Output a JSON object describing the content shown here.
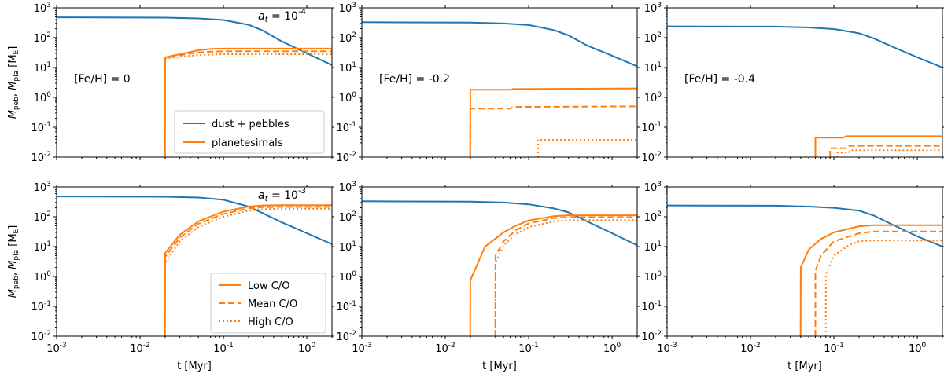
{
  "colors": {
    "dust": "#1f77b4",
    "planetesimals": "#ff7f0e"
  },
  "axis_labels": {
    "x": "t [Myr]",
    "y_main": "M",
    "y_sub_peb": "peb",
    "y_comma": ", ",
    "y_sub_pla": "pla",
    "y_unit_open": " [M",
    "y_unit_sub": "E",
    "y_unit_close": "]"
  },
  "legends": {
    "top": [
      {
        "label": "dust + pebbles",
        "series": "dust",
        "style": "solid"
      },
      {
        "label": "planetesimals",
        "series": "planetesimals",
        "style": "solid"
      }
    ],
    "bottom": [
      {
        "label": "Low C/O",
        "series": "planetesimals",
        "style": "solid"
      },
      {
        "label": "Mean C/O",
        "series": "planetesimals",
        "style": "dashed"
      },
      {
        "label": "High C/O",
        "series": "planetesimals",
        "style": "dotted"
      }
    ]
  },
  "chart_data": [
    {
      "type": "line",
      "row": 0,
      "col": 0,
      "xscale": "log",
      "yscale": "log",
      "xlim": [
        0.001,
        2
      ],
      "ylim": [
        0.01,
        1000
      ],
      "xlabel": "",
      "ylabel": "Mpeb, Mpla [ME]",
      "annotation": {
        "prefix": "a",
        "sub": "t",
        "mid": " = 10",
        "sup": "-4"
      },
      "panel_label": "[Fe/H] = 0",
      "legend": "top",
      "series": [
        {
          "name": "dust + pebbles (Low C/O)",
          "color": "dust",
          "style": "solid",
          "x": [
            0.001,
            0.02,
            0.05,
            0.1,
            0.2,
            0.3,
            0.5,
            1,
            2
          ],
          "y": [
            480,
            470,
            440,
            390,
            270,
            170,
            75,
            30,
            12
          ]
        },
        {
          "name": "planetesimals (Low C/O)",
          "color": "planetesimals",
          "style": "solid",
          "x": [
            0.0199,
            0.02,
            0.03,
            0.05,
            0.07,
            0.1,
            2
          ],
          "y": [
            0.01,
            22,
            28,
            38,
            42,
            43,
            43
          ]
        },
        {
          "name": "planetesimals (Mean C/O)",
          "color": "planetesimals",
          "style": "dashed",
          "x": [
            0.0199,
            0.02,
            0.03,
            0.05,
            0.07,
            0.1,
            2
          ],
          "y": [
            0.01,
            21,
            26,
            32,
            34,
            35,
            35
          ]
        },
        {
          "name": "planetesimals (High C/O)",
          "color": "planetesimals",
          "style": "dotted",
          "x": [
            0.0199,
            0.02,
            0.03,
            0.05,
            0.07,
            0.1,
            2
          ],
          "y": [
            0.01,
            20,
            23,
            26,
            27,
            28,
            28
          ]
        }
      ]
    },
    {
      "type": "line",
      "row": 0,
      "col": 1,
      "xscale": "log",
      "yscale": "log",
      "xlim": [
        0.001,
        2
      ],
      "ylim": [
        0.01,
        1000
      ],
      "xlabel": "",
      "ylabel": "",
      "panel_label": "[Fe/H] = -0.2",
      "series": [
        {
          "name": "dust + pebbles",
          "color": "dust",
          "style": "solid",
          "x": [
            0.001,
            0.02,
            0.05,
            0.1,
            0.2,
            0.3,
            0.5,
            1,
            2
          ],
          "y": [
            330,
            320,
            300,
            265,
            180,
            120,
            55,
            25,
            11
          ]
        },
        {
          "name": "planetesimals (Low C/O)",
          "color": "planetesimals",
          "style": "solid",
          "x": [
            0.0199,
            0.02,
            0.06,
            0.065,
            2
          ],
          "y": [
            0.01,
            1.8,
            1.8,
            1.9,
            2.0
          ]
        },
        {
          "name": "planetesimals (Mean C/O)",
          "color": "planetesimals",
          "style": "dashed",
          "x": [
            0.0199,
            0.02,
            0.06,
            0.065,
            2
          ],
          "y": [
            0.01,
            0.42,
            0.42,
            0.48,
            0.5
          ]
        },
        {
          "name": "planetesimals (High C/O)",
          "color": "planetesimals",
          "style": "dotted",
          "x": [
            0.1299,
            0.13,
            2
          ],
          "y": [
            0.01,
            0.038,
            0.038
          ]
        }
      ]
    },
    {
      "type": "line",
      "row": 0,
      "col": 2,
      "xscale": "log",
      "yscale": "log",
      "xlim": [
        0.001,
        2
      ],
      "ylim": [
        0.01,
        1000
      ],
      "xlabel": "",
      "ylabel": "",
      "panel_label": "[Fe/H] = -0.4",
      "series": [
        {
          "name": "dust + pebbles",
          "color": "dust",
          "style": "solid",
          "x": [
            0.001,
            0.02,
            0.05,
            0.1,
            0.2,
            0.3,
            0.5,
            1,
            2
          ],
          "y": [
            240,
            235,
            220,
            195,
            140,
            95,
            50,
            22,
            10
          ]
        },
        {
          "name": "planetesimals (Low C/O)",
          "color": "planetesimals",
          "style": "solid",
          "x": [
            0.0599,
            0.06,
            0.13,
            0.14,
            2
          ],
          "y": [
            0.01,
            0.045,
            0.045,
            0.05,
            0.05
          ]
        },
        {
          "name": "planetesimals (Mean C/O)",
          "color": "planetesimals",
          "style": "dashed",
          "x": [
            0.0899,
            0.09,
            0.14,
            0.15,
            2
          ],
          "y": [
            0.01,
            0.02,
            0.02,
            0.024,
            0.024
          ]
        },
        {
          "name": "planetesimals (High C/O)",
          "color": "planetesimals",
          "style": "dotted",
          "x": [
            0.1099,
            0.11,
            0.15,
            0.16,
            2
          ],
          "y": [
            0.01,
            0.014,
            0.014,
            0.017,
            0.017
          ]
        }
      ]
    },
    {
      "type": "line",
      "row": 1,
      "col": 0,
      "xscale": "log",
      "yscale": "log",
      "xlim": [
        0.001,
        2
      ],
      "ylim": [
        0.01,
        1000
      ],
      "xlabel": "t [Myr]",
      "ylabel": "Mpeb, Mpla [ME]",
      "annotation": {
        "prefix": "a",
        "sub": "t",
        "mid": " = 10",
        "sup": "-3"
      },
      "legend": "bottom",
      "series": [
        {
          "name": "dust + pebbles",
          "color": "dust",
          "style": "solid",
          "x": [
            0.001,
            0.02,
            0.05,
            0.1,
            0.2,
            0.3,
            0.5,
            1,
            2
          ],
          "y": [
            480,
            470,
            440,
            370,
            220,
            130,
            65,
            28,
            12
          ]
        },
        {
          "name": "planetesimals (Low C/O)",
          "color": "planetesimals",
          "style": "solid",
          "x": [
            0.0199,
            0.02,
            0.03,
            0.05,
            0.1,
            0.2,
            0.3,
            0.5,
            2
          ],
          "y": [
            0.01,
            6,
            25,
            70,
            150,
            220,
            240,
            245,
            245
          ]
        },
        {
          "name": "planetesimals (Mean C/O)",
          "color": "planetesimals",
          "style": "dashed",
          "x": [
            0.0199,
            0.02,
            0.03,
            0.05,
            0.1,
            0.2,
            0.3,
            0.5,
            2
          ],
          "y": [
            0.01,
            4.5,
            20,
            58,
            125,
            190,
            210,
            215,
            215
          ]
        },
        {
          "name": "planetesimals (High C/O)",
          "color": "planetesimals",
          "style": "dotted",
          "x": [
            0.0199,
            0.02,
            0.03,
            0.05,
            0.1,
            0.2,
            0.3,
            0.5,
            2
          ],
          "y": [
            0.01,
            3,
            15,
            45,
            100,
            160,
            180,
            185,
            185
          ]
        }
      ]
    },
    {
      "type": "line",
      "row": 1,
      "col": 1,
      "xscale": "log",
      "yscale": "log",
      "xlim": [
        0.001,
        2
      ],
      "ylim": [
        0.01,
        1000
      ],
      "xlabel": "t [Myr]",
      "ylabel": "",
      "series": [
        {
          "name": "dust + pebbles",
          "color": "dust",
          "style": "solid",
          "x": [
            0.001,
            0.02,
            0.05,
            0.1,
            0.2,
            0.3,
            0.5,
            1,
            2
          ],
          "y": [
            330,
            320,
            300,
            260,
            190,
            140,
            70,
            28,
            11
          ]
        },
        {
          "name": "planetesimals (Low C/O)",
          "color": "planetesimals",
          "style": "solid",
          "x": [
            0.0199,
            0.02,
            0.03,
            0.05,
            0.07,
            0.1,
            0.2,
            0.3,
            2
          ],
          "y": [
            0.01,
            0.75,
            10,
            30,
            50,
            75,
            105,
            112,
            112
          ]
        },
        {
          "name": "planetesimals (Mean C/O)",
          "color": "planetesimals",
          "style": "dashed",
          "x": [
            0.0399,
            0.04,
            0.05,
            0.07,
            0.1,
            0.2,
            0.3,
            2
          ],
          "y": [
            0.01,
            5,
            15,
            35,
            60,
            90,
            97,
            97
          ]
        },
        {
          "name": "planetesimals (High C/O)",
          "color": "planetesimals",
          "style": "dotted",
          "x": [
            0.0399,
            0.04,
            0.05,
            0.07,
            0.1,
            0.2,
            0.3,
            2
          ],
          "y": [
            0.01,
            3,
            11,
            26,
            45,
            70,
            77,
            78
          ]
        }
      ]
    },
    {
      "type": "line",
      "row": 1,
      "col": 2,
      "xscale": "log",
      "yscale": "log",
      "xlim": [
        0.001,
        2
      ],
      "ylim": [
        0.01,
        1000
      ],
      "xlabel": "t [Myr]",
      "ylabel": "",
      "series": [
        {
          "name": "dust + pebbles",
          "color": "dust",
          "style": "solid",
          "x": [
            0.001,
            0.02,
            0.05,
            0.1,
            0.2,
            0.3,
            0.5,
            1,
            2
          ],
          "y": [
            240,
            235,
            220,
            200,
            160,
            110,
            55,
            22,
            10
          ]
        },
        {
          "name": "planetesimals (Low C/O)",
          "color": "planetesimals",
          "style": "solid",
          "x": [
            0.0399,
            0.04,
            0.05,
            0.07,
            0.1,
            0.2,
            0.3,
            2
          ],
          "y": [
            0.01,
            2,
            8,
            18,
            30,
            48,
            52,
            52
          ]
        },
        {
          "name": "planetesimals (Mean C/O)",
          "color": "planetesimals",
          "style": "dashed",
          "x": [
            0.0599,
            0.06,
            0.07,
            0.1,
            0.2,
            0.3,
            2
          ],
          "y": [
            0.01,
            1.5,
            5,
            15,
            28,
            32,
            32
          ]
        },
        {
          "name": "planetesimals (High C/O)",
          "color": "planetesimals",
          "style": "dotted",
          "x": [
            0.0799,
            0.08,
            0.1,
            0.15,
            0.2,
            0.3,
            2
          ],
          "y": [
            0.01,
            1.2,
            5,
            11,
            15,
            16,
            16
          ]
        }
      ]
    }
  ]
}
